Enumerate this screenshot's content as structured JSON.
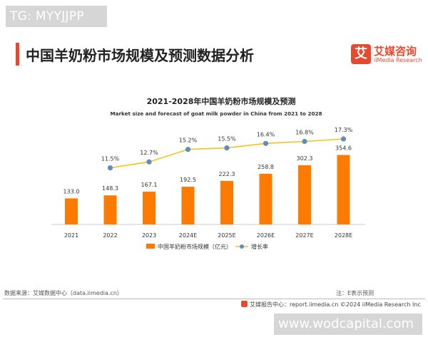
{
  "watermark_top": "TG: MYYJJPP",
  "watermark_bottom": "www.wodcapital.com",
  "page_title": "中国羊奶粉市场规模及预测数据分析",
  "logo": {
    "mark": "艾",
    "name_cn": "艾媒咨询",
    "name_en": "iiMedia Research"
  },
  "chart_data": {
    "type": "bar+line",
    "title": "2021-2028年中国羊奶粉市场规模及预测",
    "subtitle": "Market size and forecast of goat milk powder in China from 2021 to 2028",
    "categories": [
      "2021",
      "2022",
      "2023",
      "2024E",
      "2025E",
      "2026E",
      "2027E",
      "2028E"
    ],
    "series": [
      {
        "name": "中国羊奶粉市场规模（亿元）",
        "type": "bar",
        "color": "#ff7a00",
        "values": [
          133.0,
          148.3,
          167.1,
          192.5,
          222.3,
          258.8,
          302.3,
          354.6
        ],
        "labels": [
          "133.0",
          "148.3",
          "167.1",
          "192.5",
          "222.3",
          "258.8",
          "302.3",
          "354.6"
        ]
      },
      {
        "name": "增长率",
        "type": "line",
        "color": "#f7c21b",
        "marker_color": "#5b8fbf",
        "values": [
          null,
          11.5,
          12.7,
          15.2,
          15.5,
          16.4,
          16.8,
          17.3
        ],
        "labels": [
          "",
          "11.5%",
          "12.7%",
          "15.2%",
          "15.5%",
          "16.4%",
          "16.8%",
          "17.3%"
        ]
      }
    ],
    "legend": "bottom",
    "grid": false
  },
  "footer": {
    "source": "数据来源：艾媒数据中心（data.iimedia.cn）",
    "note": "注：E表示预测",
    "report": "艾媒报告中心：report.iimedia.cn   ©2024  iiMedia Research  Inc"
  }
}
